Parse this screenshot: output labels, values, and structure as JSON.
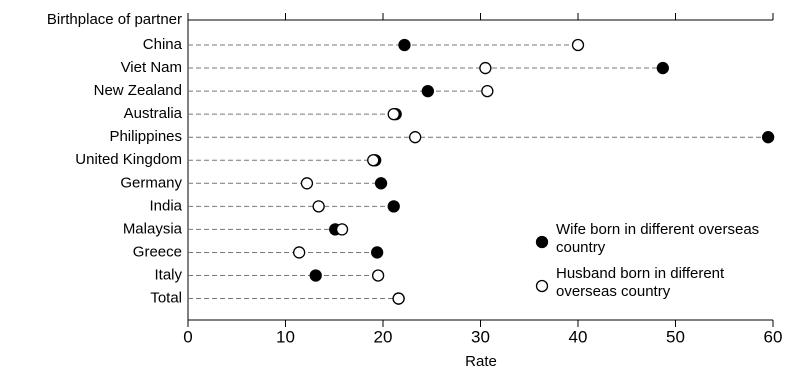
{
  "chart_data": {
    "type": "dot",
    "y_axis_label": "Birthplace of partner",
    "x_axis_label": "Rate",
    "categories": [
      "China",
      "Viet Nam",
      "New Zealand",
      "Australia",
      "Philippines",
      "United Kingdom",
      "Germany",
      "India",
      "Malaysia",
      "Greece",
      "Italy",
      "Total"
    ],
    "series": [
      {
        "name": "Wife born in different overseas country",
        "color": "#000000",
        "marker": "filled",
        "values": [
          22.2,
          48.7,
          24.6,
          21.3,
          59.5,
          19.2,
          19.8,
          21.1,
          15.1,
          19.4,
          13.1,
          21.6
        ]
      },
      {
        "name": "Husband born in different overseas country",
        "color": "#000000",
        "marker": "open",
        "values": [
          40.0,
          30.5,
          30.7,
          21.1,
          23.3,
          19.0,
          12.2,
          13.4,
          15.8,
          11.4,
          19.5,
          21.6
        ]
      }
    ],
    "xlim": [
      0,
      60
    ],
    "xticks": [
      0,
      10,
      20,
      30,
      40,
      50,
      60
    ]
  }
}
